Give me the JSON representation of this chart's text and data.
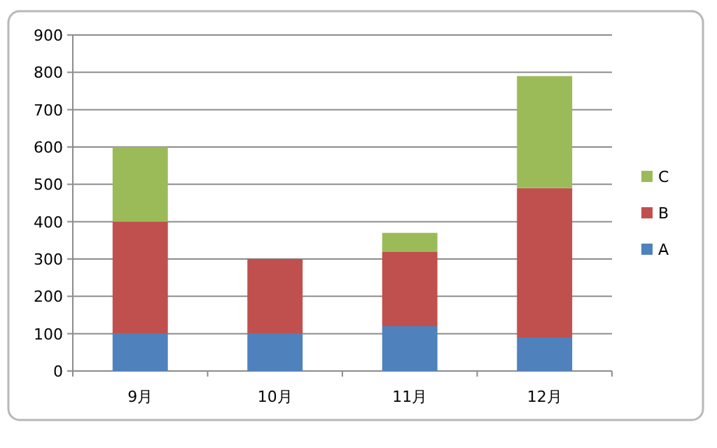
{
  "chart_data": {
    "type": "bar",
    "stacked": true,
    "categories": [
      "9月",
      "10月",
      "11月",
      "12月"
    ],
    "series": [
      {
        "name": "A",
        "color": "#4f81bd",
        "values": [
          100,
          100,
          120,
          90
        ]
      },
      {
        "name": "B",
        "color": "#c0504d",
        "values": [
          300,
          200,
          200,
          400
        ]
      },
      {
        "name": "C",
        "color": "#9bbb59",
        "values": [
          200,
          0,
          50,
          300
        ]
      }
    ],
    "ylim": [
      0,
      900
    ],
    "yticks": [
      0,
      100,
      200,
      300,
      400,
      500,
      600,
      700,
      800,
      900
    ],
    "grid": "y",
    "legend": "right"
  }
}
